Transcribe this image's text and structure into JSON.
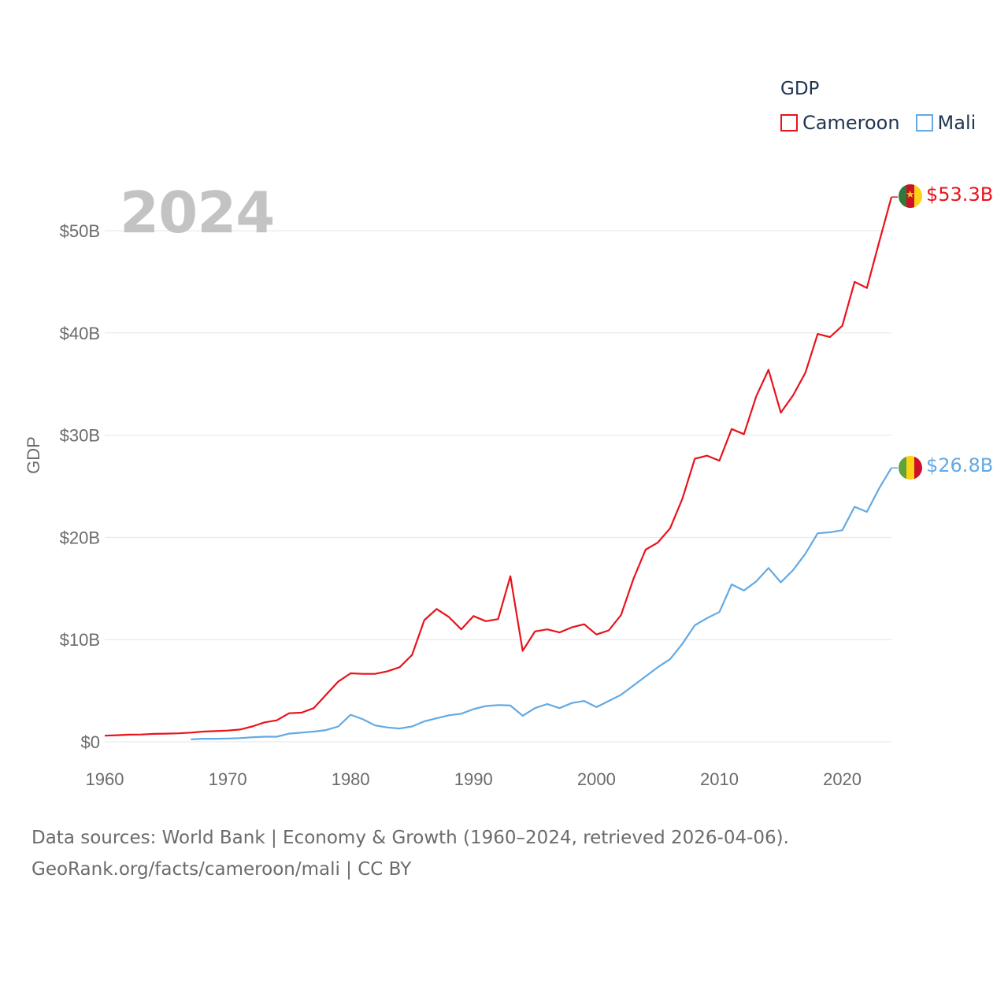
{
  "chart_data": {
    "type": "line",
    "title": "",
    "ylabel": "GDP",
    "xlabel": "",
    "xlim": [
      1960,
      2024
    ],
    "ylim": [
      0,
      55
    ],
    "x_ticks": [
      1960,
      1970,
      1980,
      1990,
      2000,
      2010,
      2020
    ],
    "y_ticks": [
      0,
      10,
      20,
      30,
      40,
      50
    ],
    "y_tick_labels": [
      "$0",
      "$10B",
      "$20B",
      "$30B",
      "$40B",
      "$50B"
    ],
    "unit": "billions USD",
    "grid": true,
    "series": [
      {
        "name": "Cameroon",
        "color": "#e8131b",
        "end_label": "$53.3B",
        "x": [
          1960,
          1961,
          1962,
          1963,
          1964,
          1965,
          1966,
          1967,
          1968,
          1969,
          1970,
          1971,
          1972,
          1973,
          1974,
          1975,
          1976,
          1977,
          1978,
          1979,
          1980,
          1981,
          1982,
          1983,
          1984,
          1985,
          1986,
          1987,
          1988,
          1989,
          1990,
          1991,
          1992,
          1993,
          1994,
          1995,
          1996,
          1997,
          1998,
          1999,
          2000,
          2001,
          2002,
          2003,
          2004,
          2005,
          2006,
          2007,
          2008,
          2009,
          2010,
          2011,
          2012,
          2013,
          2014,
          2015,
          2016,
          2017,
          2018,
          2019,
          2020,
          2021,
          2022,
          2023,
          2024
        ],
        "values": [
          0.6,
          0.65,
          0.7,
          0.72,
          0.78,
          0.8,
          0.83,
          0.9,
          1.0,
          1.05,
          1.1,
          1.2,
          1.5,
          1.9,
          2.1,
          2.8,
          2.85,
          3.3,
          4.6,
          5.9,
          6.7,
          6.65,
          6.65,
          6.9,
          7.3,
          8.5,
          11.9,
          13.0,
          12.2,
          11.0,
          12.3,
          11.8,
          12.0,
          16.2,
          8.9,
          10.8,
          11.0,
          10.7,
          11.2,
          11.5,
          10.5,
          10.9,
          12.4,
          15.9,
          18.8,
          19.5,
          20.9,
          23.8,
          27.7,
          28.0,
          27.5,
          30.6,
          30.1,
          33.8,
          36.4,
          32.2,
          33.9,
          36.1,
          39.9,
          39.6,
          40.7,
          45.0,
          44.4,
          48.9,
          53.3
        ]
      },
      {
        "name": "Mali",
        "color": "#63a9e4",
        "end_label": "$26.8B",
        "x": [
          1967,
          1968,
          1969,
          1970,
          1971,
          1972,
          1973,
          1974,
          1975,
          1976,
          1977,
          1978,
          1979,
          1980,
          1981,
          1982,
          1983,
          1984,
          1985,
          1986,
          1987,
          1988,
          1989,
          1990,
          1991,
          1992,
          1993,
          1994,
          1995,
          1996,
          1997,
          1998,
          1999,
          2000,
          2001,
          2002,
          2003,
          2004,
          2005,
          2006,
          2007,
          2008,
          2009,
          2010,
          2011,
          2012,
          2013,
          2014,
          2015,
          2016,
          2017,
          2018,
          2019,
          2020,
          2021,
          2022,
          2023,
          2024
        ],
        "values": [
          0.25,
          0.3,
          0.3,
          0.32,
          0.36,
          0.45,
          0.5,
          0.5,
          0.8,
          0.9,
          1.0,
          1.15,
          1.5,
          2.65,
          2.2,
          1.6,
          1.4,
          1.3,
          1.5,
          2.0,
          2.3,
          2.6,
          2.75,
          3.2,
          3.5,
          3.6,
          3.55,
          2.55,
          3.3,
          3.7,
          3.3,
          3.8,
          4.0,
          3.4,
          4.0,
          4.6,
          5.5,
          6.4,
          7.3,
          8.1,
          9.6,
          11.4,
          12.1,
          12.7,
          15.4,
          14.8,
          15.7,
          17.0,
          15.6,
          16.8,
          18.4,
          20.4,
          20.5,
          20.7,
          23.0,
          22.5,
          24.8,
          26.8
        ]
      }
    ]
  },
  "legend": {
    "title": "GDP",
    "items": [
      {
        "label": "Cameroon",
        "color": "#e8131b"
      },
      {
        "label": "Mali",
        "color": "#63a9e4"
      }
    ]
  },
  "year_label": "2024",
  "flags": {
    "cameroon_colors": [
      "#2f7a3a",
      "#ce1126",
      "#fcd116"
    ],
    "mali_colors": [
      "#5ea33b",
      "#fcd116",
      "#ce1126"
    ],
    "star_glyph": "★"
  },
  "footer": {
    "line1": "Data sources: World Bank | Economy & Growth (1960–2024, retrieved 2026-04-06).",
    "line2": "GeoRank.org/facts/cameroon/mali | CC BY"
  }
}
